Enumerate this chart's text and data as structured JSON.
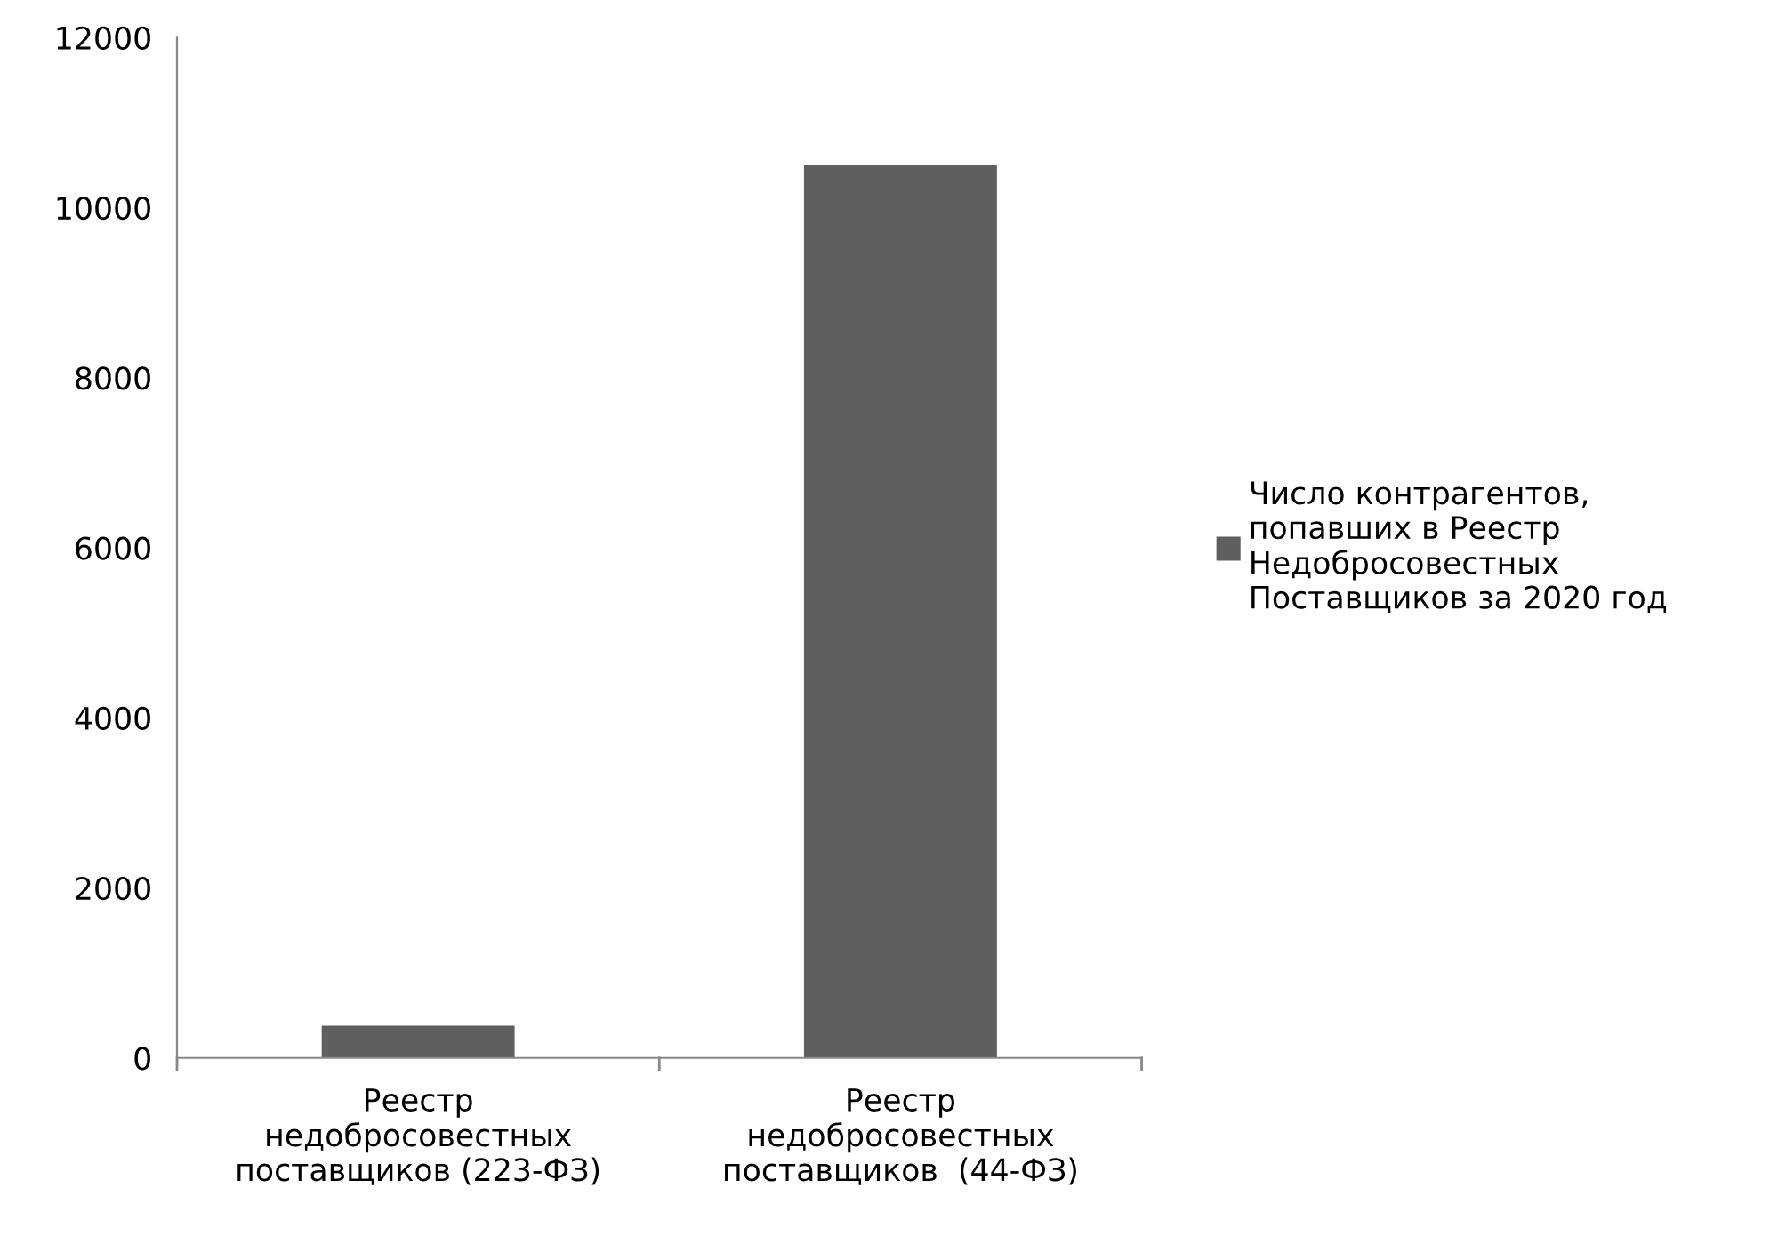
{
  "chart_data": {
    "type": "bar",
    "categories": [
      "Реестр\nнедобросовестных\nпоставщиков (223-ФЗ)",
      "Реестр\nнедобросовестных\nпоставщиков  (44-ФЗ)"
    ],
    "series": [
      {
        "name": "Число контрагентов,\nпопавших в Реестр\nНедобросовестных\nПоставщиков за 2020 год",
        "color": "#5f5f5f",
        "values": [
          380,
          10500
        ]
      }
    ],
    "ylim": [
      0,
      12000
    ],
    "yticks": [
      0,
      2000,
      4000,
      6000,
      8000,
      10000,
      12000
    ],
    "grid": false,
    "legend": "right"
  }
}
